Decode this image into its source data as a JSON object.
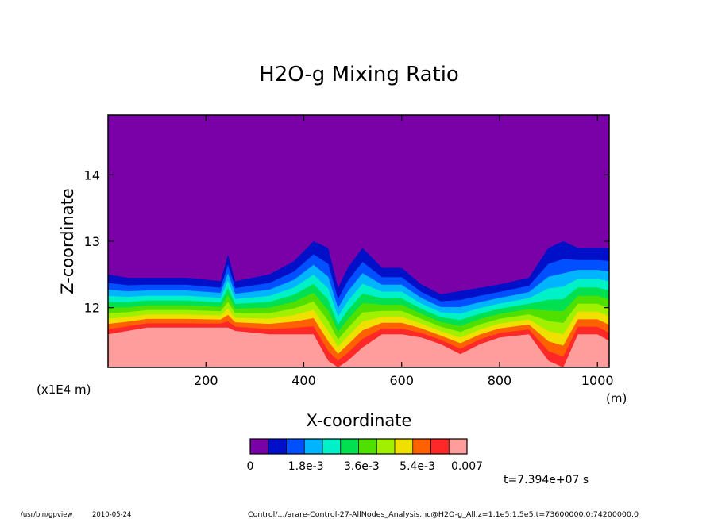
{
  "chart_data": {
    "type": "heatmap",
    "title": "H2O-g Mixing Ratio",
    "xlabel": "X-coordinate",
    "ylabel": "Z-coordinate",
    "x_unit_label": "(m)",
    "y_unit_label": "(x1E4 m)",
    "xlim": [
      0,
      1024
    ],
    "ylim": [
      11.1,
      14.9
    ],
    "xticks": [
      200,
      400,
      600,
      800,
      1000
    ],
    "yticks": [
      12,
      13,
      14
    ],
    "colorbar": {
      "colors": [
        "#7a00a8",
        "#0010c8",
        "#0050ff",
        "#00b4ff",
        "#00f0c8",
        "#00e050",
        "#50e000",
        "#a0f000",
        "#f0e000",
        "#ff6000",
        "#ff2828",
        "#ff9c9c"
      ],
      "tick_labels": [
        "0",
        "1.8e-3",
        "3.6e-3",
        "5.4e-3",
        "0.007"
      ],
      "levels": [
        0,
        0.0006,
        0.0012,
        0.0018,
        0.0024,
        0.003,
        0.0036,
        0.0042,
        0.0048,
        0.0054,
        0.006,
        0.0066,
        0.007
      ]
    },
    "moist_layer_top_z": {
      "x": [
        0,
        40,
        80,
        160,
        230,
        245,
        260,
        330,
        380,
        420,
        450,
        470,
        490,
        520,
        560,
        600,
        640,
        680,
        720,
        760,
        800,
        860,
        900,
        930,
        960,
        1000,
        1024
      ],
      "z_top": [
        12.5,
        12.45,
        12.45,
        12.45,
        12.4,
        12.8,
        12.4,
        12.5,
        12.7,
        13.0,
        12.9,
        12.3,
        12.6,
        12.9,
        12.6,
        12.6,
        12.35,
        12.2,
        12.25,
        12.3,
        12.35,
        12.45,
        12.9,
        13.0,
        12.9,
        12.9,
        12.9
      ],
      "z_core": [
        11.6,
        11.65,
        11.7,
        11.7,
        11.7,
        11.7,
        11.65,
        11.6,
        11.6,
        11.6,
        11.2,
        11.1,
        11.2,
        11.4,
        11.6,
        11.6,
        11.55,
        11.45,
        11.3,
        11.45,
        11.55,
        11.6,
        11.2,
        11.1,
        11.6,
        11.6,
        11.5
      ]
    },
    "time_label": "t=7.394e+07 s"
  },
  "footer": {
    "program": "/usr/bin/gpview",
    "date": "2010-05-24",
    "source": "Control/.../arare-Control-27-AllNodes_Analysis.nc@H2O-g_All,z=1.1e5:1.5e5,t=73600000.0:74200000.0"
  }
}
